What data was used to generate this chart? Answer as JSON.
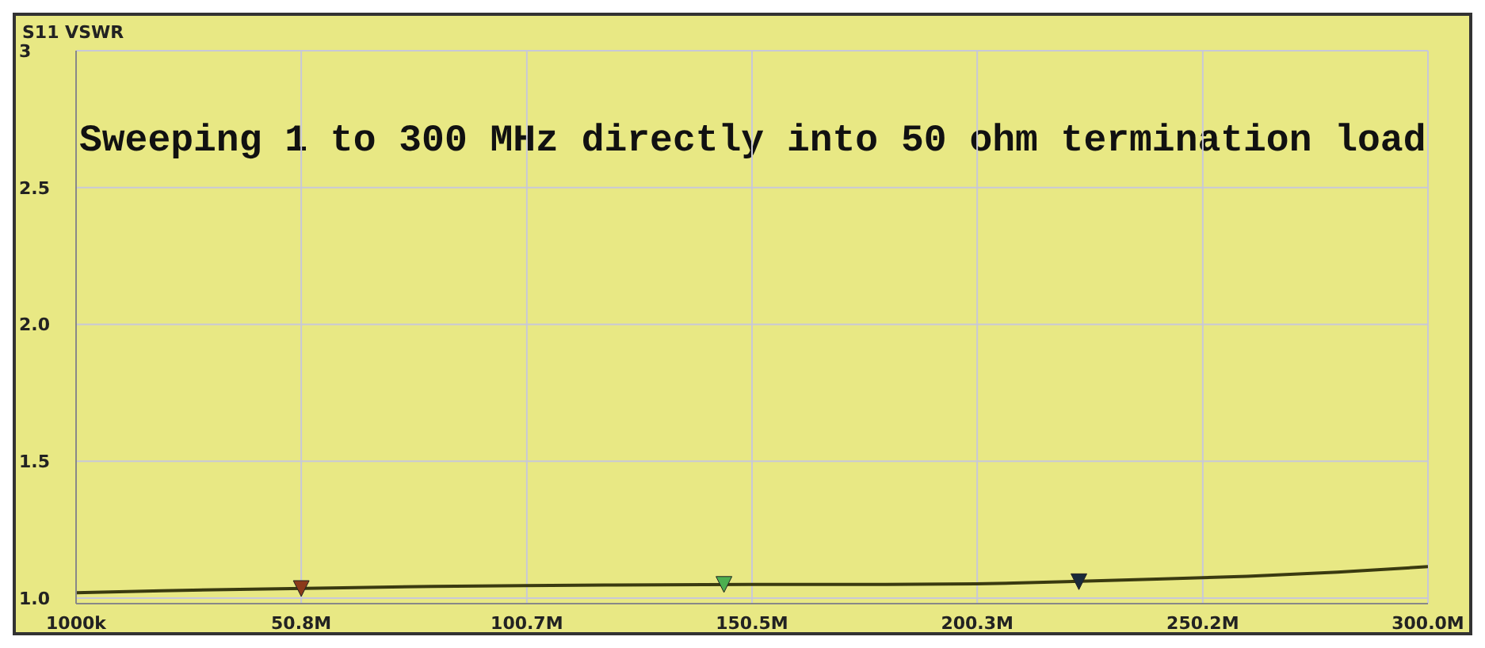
{
  "chart_data": {
    "type": "line",
    "ylabel": "S11 VSWR",
    "annotations": [
      "Sweeping 1 to 300 MHz directly into 50 ohm termination load"
    ],
    "xlim": [
      1000000,
      300000000
    ],
    "xticks": [
      {
        "value": 1000000,
        "label": "1000k"
      },
      {
        "value": 50800000,
        "label": "50.8M"
      },
      {
        "value": 100700000,
        "label": "100.7M"
      },
      {
        "value": 150500000,
        "label": "150.5M"
      },
      {
        "value": 200300000,
        "label": "200.3M"
      },
      {
        "value": 250200000,
        "label": "250.2M"
      },
      {
        "value": 300000000,
        "label": "300.0M"
      }
    ],
    "ylim": [
      0.98,
      3
    ],
    "yticks": [
      {
        "value": 1,
        "label": "1.0"
      },
      1.5,
      {
        "value": 2,
        "label": "2.0"
      },
      2.5,
      3
    ],
    "grid": true,
    "series": [
      {
        "color": "#3a3a10",
        "x": [
          1000000,
          20000000,
          40000000,
          60000000,
          80000000,
          100000000,
          120000000,
          150000000,
          180000000,
          200000000,
          220000000,
          240000000,
          260000000,
          280000000,
          300000000
        ],
        "values": [
          1.02,
          1.027,
          1.033,
          1.038,
          1.043,
          1.046,
          1.048,
          1.05,
          1.05,
          1.052,
          1.06,
          1.07,
          1.08,
          1.095,
          1.115
        ]
      },
      {
        "type": "scatter",
        "marker": "triangle",
        "x": [
          50800000,
          144300000,
          222800000
        ],
        "values": [
          1.035,
          1.05,
          1.06
        ],
        "colors": [
          "#8b3a1a",
          "#4caf50",
          "#1a2a3a"
        ]
      }
    ]
  }
}
